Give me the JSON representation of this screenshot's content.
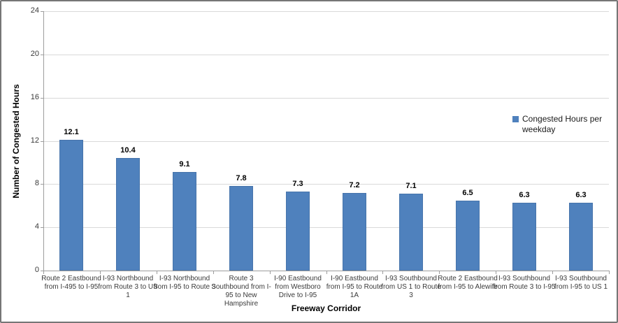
{
  "chart_data": {
    "type": "bar",
    "title": "",
    "xlabel": "Freeway Corridor",
    "ylabel": "Number of Congested Hours",
    "categories": [
      "Route 2 Eastbound from I-495 to I-95",
      "I-93 Northbound from Route 3 to US 1",
      "I-93 Northbound from I-95 to Route 3",
      "Route 3 Southbound from I-95 to New Hampshire",
      "I-90  Eastbound from Westboro Drive to I-95",
      "I-90  Eastbound from I-95 to Route 1A",
      "I-93 Southbound from US 1 to Route 3",
      "Route 2 Eastbound from I-95 to Alewife",
      "I-93 Southbound from Route 3 to I-95",
      "I-93 Southbound from I-95 to US 1"
    ],
    "values": [
      12.1,
      10.4,
      9.1,
      7.8,
      7.3,
      7.2,
      7.1,
      6.5,
      6.3,
      6.3
    ],
    "data_labels": [
      "12.1",
      "10.4",
      "9.1",
      "7.8",
      "7.3",
      "7.2",
      "7.1",
      "6.5",
      "6.3",
      "6.3"
    ],
    "ylim": [
      0,
      24
    ],
    "yticks": [
      0,
      4,
      8,
      12,
      16,
      20,
      24
    ],
    "grid": "horizontal-major",
    "legend": {
      "position": "right",
      "entries": [
        "Congested Hours per weekday"
      ]
    },
    "series": [
      {
        "name": "Congested Hours per weekday",
        "color": "#4f81bd"
      }
    ],
    "colors": {
      "bar": "#4f81bd",
      "gridline": "#d9d9d9",
      "axis": "#9d9d9d",
      "border": "#767676",
      "tick_text": "#3a3a3a",
      "label_text": "#000000"
    }
  }
}
